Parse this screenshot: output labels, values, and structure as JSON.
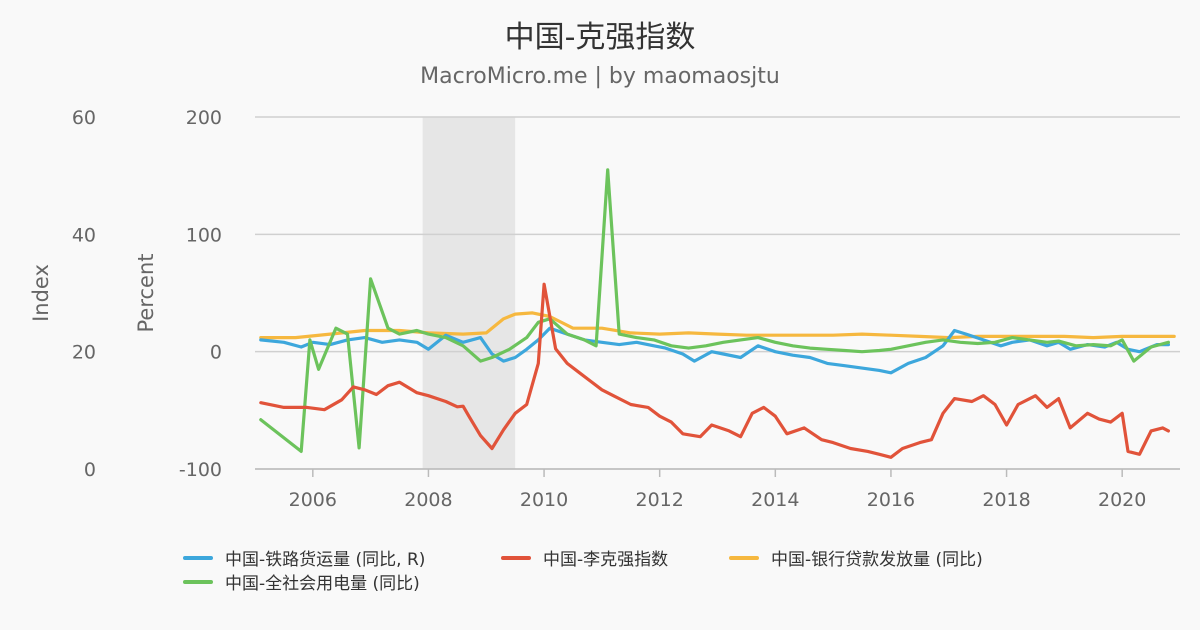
{
  "page": {
    "title": "中国-克强指数",
    "subtitle": "MacroMicro.me | by maomaosjtu"
  },
  "colors": {
    "rail": "#3da7dc",
    "keqiang": "#e1533a",
    "loan": "#f6b83f",
    "power": "#6cc35c",
    "recession": "#e6e6e6",
    "grid": "#d0d0d0"
  },
  "legend": [
    {
      "label": "中国-铁路货运量 (同比, R)",
      "color": "#3da7dc"
    },
    {
      "label": "中国-李克强指数",
      "color": "#e1533a"
    },
    {
      "label": "中国-银行贷款发放量 (同比)",
      "color": "#f6b83f"
    },
    {
      "label": "中国-全社会用电量 (同比)",
      "color": "#6cc35c"
    }
  ],
  "chart_data": {
    "type": "line",
    "title": "中国-克强指数",
    "subtitle": "MacroMicro.me | by maomaosjtu",
    "x_range": [
      2005.0,
      2021.0
    ],
    "x_ticks": [
      2006,
      2008,
      2010,
      2012,
      2014,
      2016,
      2018,
      2020
    ],
    "left_axis": {
      "label": "Index",
      "range": [
        0,
        60
      ],
      "ticks": [
        0,
        20,
        40,
        60
      ]
    },
    "right_axis": {
      "label": "Percent",
      "range": [
        -100,
        200
      ],
      "ticks": [
        -100,
        0,
        100,
        200
      ]
    },
    "shaded_period": [
      2007.9,
      2009.5
    ],
    "series": [
      {
        "name": "中国-铁路货运量 (同比, R)",
        "axis": "right",
        "points": [
          [
            2005.1,
            10
          ],
          [
            2005.5,
            8
          ],
          [
            2005.8,
            4
          ],
          [
            2006.0,
            8
          ],
          [
            2006.3,
            6
          ],
          [
            2006.6,
            10
          ],
          [
            2006.9,
            12
          ],
          [
            2007.2,
            8
          ],
          [
            2007.5,
            10
          ],
          [
            2007.8,
            8
          ],
          [
            2008.0,
            2
          ],
          [
            2008.3,
            14
          ],
          [
            2008.6,
            8
          ],
          [
            2008.9,
            12
          ],
          [
            2009.1,
            -2
          ],
          [
            2009.3,
            -8
          ],
          [
            2009.5,
            -5
          ],
          [
            2009.7,
            2
          ],
          [
            2009.9,
            10
          ],
          [
            2010.1,
            20
          ],
          [
            2010.4,
            15
          ],
          [
            2010.7,
            10
          ],
          [
            2011.0,
            8
          ],
          [
            2011.3,
            6
          ],
          [
            2011.6,
            8
          ],
          [
            2011.9,
            5
          ],
          [
            2012.1,
            3
          ],
          [
            2012.4,
            -2
          ],
          [
            2012.6,
            -8
          ],
          [
            2012.9,
            0
          ],
          [
            2013.1,
            -2
          ],
          [
            2013.4,
            -5
          ],
          [
            2013.7,
            5
          ],
          [
            2014.0,
            0
          ],
          [
            2014.3,
            -3
          ],
          [
            2014.6,
            -5
          ],
          [
            2014.9,
            -10
          ],
          [
            2015.2,
            -12
          ],
          [
            2015.5,
            -14
          ],
          [
            2015.8,
            -16
          ],
          [
            2016.0,
            -18
          ],
          [
            2016.3,
            -10
          ],
          [
            2016.6,
            -5
          ],
          [
            2016.9,
            5
          ],
          [
            2017.1,
            18
          ],
          [
            2017.3,
            15
          ],
          [
            2017.6,
            10
          ],
          [
            2017.9,
            5
          ],
          [
            2018.1,
            8
          ],
          [
            2018.4,
            10
          ],
          [
            2018.7,
            5
          ],
          [
            2018.9,
            8
          ],
          [
            2019.1,
            2
          ],
          [
            2019.4,
            6
          ],
          [
            2019.7,
            4
          ],
          [
            2019.9,
            8
          ],
          [
            2020.1,
            2
          ],
          [
            2020.3,
            0
          ],
          [
            2020.6,
            6
          ],
          [
            2020.8,
            6
          ]
        ]
      },
      {
        "name": "中国-李克强指数",
        "axis": "left",
        "points": [
          [
            2005.1,
            11.3
          ],
          [
            2005.5,
            10.5
          ],
          [
            2005.9,
            10.5
          ],
          [
            2006.2,
            10.1
          ],
          [
            2006.5,
            11.8
          ],
          [
            2006.7,
            14.0
          ],
          [
            2006.9,
            13.5
          ],
          [
            2007.1,
            12.7
          ],
          [
            2007.3,
            14.2
          ],
          [
            2007.5,
            14.8
          ],
          [
            2007.8,
            13.0
          ],
          [
            2008.0,
            12.5
          ],
          [
            2008.3,
            11.5
          ],
          [
            2008.5,
            10.6
          ],
          [
            2008.6,
            10.7
          ],
          [
            2008.7,
            9.0
          ],
          [
            2008.9,
            5.7
          ],
          [
            2009.1,
            3.5
          ],
          [
            2009.3,
            6.7
          ],
          [
            2009.5,
            9.5
          ],
          [
            2009.7,
            11.0
          ],
          [
            2009.9,
            18.0
          ],
          [
            2010.0,
            31.5
          ],
          [
            2010.2,
            20.5
          ],
          [
            2010.4,
            18.0
          ],
          [
            2010.6,
            16.5
          ],
          [
            2010.8,
            15.0
          ],
          [
            2011.0,
            13.5
          ],
          [
            2011.2,
            12.5
          ],
          [
            2011.5,
            11.0
          ],
          [
            2011.8,
            10.5
          ],
          [
            2012.0,
            9.0
          ],
          [
            2012.2,
            8.0
          ],
          [
            2012.4,
            6.0
          ],
          [
            2012.7,
            5.5
          ],
          [
            2012.9,
            7.5
          ],
          [
            2013.2,
            6.5
          ],
          [
            2013.4,
            5.5
          ],
          [
            2013.6,
            9.5
          ],
          [
            2013.8,
            10.5
          ],
          [
            2014.0,
            9.0
          ],
          [
            2014.2,
            6.0
          ],
          [
            2014.5,
            7.0
          ],
          [
            2014.8,
            5.0
          ],
          [
            2015.0,
            4.5
          ],
          [
            2015.3,
            3.5
          ],
          [
            2015.6,
            3.0
          ],
          [
            2015.8,
            2.5
          ],
          [
            2016.0,
            2.0
          ],
          [
            2016.2,
            3.5
          ],
          [
            2016.5,
            4.5
          ],
          [
            2016.7,
            5.0
          ],
          [
            2016.9,
            9.5
          ],
          [
            2017.1,
            12.0
          ],
          [
            2017.4,
            11.5
          ],
          [
            2017.6,
            12.5
          ],
          [
            2017.8,
            11.0
          ],
          [
            2018.0,
            7.5
          ],
          [
            2018.2,
            11.0
          ],
          [
            2018.5,
            12.5
          ],
          [
            2018.7,
            10.5
          ],
          [
            2018.9,
            12.0
          ],
          [
            2019.1,
            7.0
          ],
          [
            2019.4,
            9.5
          ],
          [
            2019.6,
            8.5
          ],
          [
            2019.8,
            8.0
          ],
          [
            2020.0,
            9.5
          ],
          [
            2020.1,
            3.0
          ],
          [
            2020.3,
            2.5
          ],
          [
            2020.5,
            6.5
          ],
          [
            2020.7,
            7.0
          ],
          [
            2020.8,
            6.5
          ]
        ]
      },
      {
        "name": "中国-银行贷款发放量 (同比)",
        "axis": "right",
        "points": [
          [
            2005.1,
            12
          ],
          [
            2005.7,
            12
          ],
          [
            2006.3,
            15
          ],
          [
            2006.9,
            18
          ],
          [
            2007.5,
            18
          ],
          [
            2008.0,
            16
          ],
          [
            2008.6,
            15
          ],
          [
            2009.0,
            16
          ],
          [
            2009.3,
            28
          ],
          [
            2009.5,
            32
          ],
          [
            2009.8,
            33
          ],
          [
            2010.1,
            30
          ],
          [
            2010.5,
            20
          ],
          [
            2011.0,
            20
          ],
          [
            2011.5,
            16
          ],
          [
            2012.0,
            15
          ],
          [
            2012.5,
            16
          ],
          [
            2013.0,
            15
          ],
          [
            2013.5,
            14
          ],
          [
            2014.0,
            14
          ],
          [
            2014.5,
            14
          ],
          [
            2015.0,
            14
          ],
          [
            2015.5,
            15
          ],
          [
            2016.0,
            14
          ],
          [
            2016.5,
            13
          ],
          [
            2017.0,
            12
          ],
          [
            2017.5,
            13
          ],
          [
            2018.0,
            13
          ],
          [
            2018.5,
            13
          ],
          [
            2019.0,
            13
          ],
          [
            2019.5,
            12
          ],
          [
            2020.0,
            13
          ],
          [
            2020.5,
            13
          ],
          [
            2020.9,
            13
          ]
        ]
      },
      {
        "name": "中国-全社会用电量 (同比)",
        "axis": "right",
        "points": [
          [
            2005.1,
            -58
          ],
          [
            2005.8,
            -85
          ],
          [
            2005.95,
            10
          ],
          [
            2006.1,
            -15
          ],
          [
            2006.4,
            20
          ],
          [
            2006.6,
            15
          ],
          [
            2006.8,
            -82
          ],
          [
            2007.0,
            62
          ],
          [
            2007.3,
            20
          ],
          [
            2007.5,
            15
          ],
          [
            2007.8,
            18
          ],
          [
            2008.0,
            15
          ],
          [
            2008.3,
            12
          ],
          [
            2008.6,
            5
          ],
          [
            2008.9,
            -8
          ],
          [
            2009.1,
            -5
          ],
          [
            2009.4,
            2
          ],
          [
            2009.7,
            12
          ],
          [
            2009.9,
            25
          ],
          [
            2010.1,
            28
          ],
          [
            2010.4,
            15
          ],
          [
            2010.7,
            10
          ],
          [
            2010.9,
            5
          ],
          [
            2011.1,
            155
          ],
          [
            2011.3,
            15
          ],
          [
            2011.6,
            12
          ],
          [
            2011.9,
            10
          ],
          [
            2012.2,
            5
          ],
          [
            2012.5,
            3
          ],
          [
            2012.8,
            5
          ],
          [
            2013.1,
            8
          ],
          [
            2013.4,
            10
          ],
          [
            2013.7,
            12
          ],
          [
            2014.0,
            8
          ],
          [
            2014.3,
            5
          ],
          [
            2014.6,
            3
          ],
          [
            2014.9,
            2
          ],
          [
            2015.2,
            1
          ],
          [
            2015.5,
            0
          ],
          [
            2015.8,
            1
          ],
          [
            2016.0,
            2
          ],
          [
            2016.3,
            5
          ],
          [
            2016.6,
            8
          ],
          [
            2016.9,
            10
          ],
          [
            2017.2,
            8
          ],
          [
            2017.5,
            7
          ],
          [
            2017.8,
            8
          ],
          [
            2018.1,
            12
          ],
          [
            2018.4,
            10
          ],
          [
            2018.7,
            8
          ],
          [
            2018.9,
            9
          ],
          [
            2019.2,
            5
          ],
          [
            2019.5,
            6
          ],
          [
            2019.8,
            5
          ],
          [
            2020.0,
            10
          ],
          [
            2020.2,
            -8
          ],
          [
            2020.5,
            4
          ],
          [
            2020.8,
            8
          ]
        ]
      }
    ]
  }
}
